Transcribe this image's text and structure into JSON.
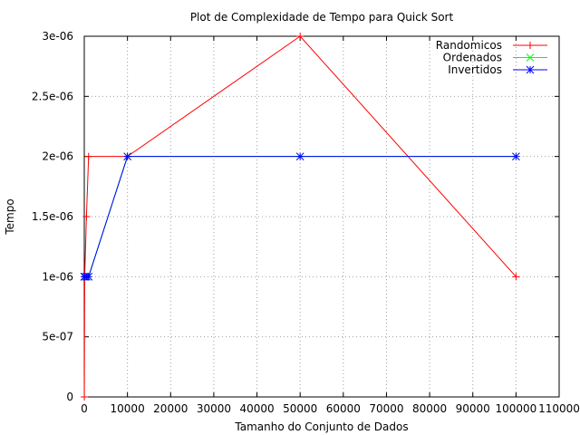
{
  "chart_data": {
    "type": "line",
    "title": "Plot de Complexidade de Tempo para Quick Sort",
    "xlabel": "Tamanho do Conjunto de Dados",
    "ylabel": "Tempo",
    "xlim": [
      0,
      110000
    ],
    "ylim": [
      0,
      3e-06
    ],
    "xticks": [
      0,
      10000,
      20000,
      30000,
      40000,
      50000,
      60000,
      70000,
      80000,
      90000,
      100000,
      110000
    ],
    "xtick_labels": [
      "0",
      "10000",
      "20000",
      "30000",
      "40000",
      "50000",
      "60000",
      "70000",
      "80000",
      "90000",
      "100000",
      "110000"
    ],
    "yticks": [
      0,
      5e-07,
      1e-06,
      1.5e-06,
      2e-06,
      2.5e-06,
      3e-06
    ],
    "ytick_labels": [
      "0",
      "5e-07",
      "1e-06",
      "1.5e-06",
      "2e-06",
      "2.5e-06",
      "3e-06"
    ],
    "grid": true,
    "legend_position": "top-right",
    "series": [
      {
        "name": "Randomicos",
        "color": "#ff0000",
        "marker": "plus",
        "x": [
          10,
          100,
          500,
          1000,
          10000,
          50000,
          100000
        ],
        "y": [
          0,
          1e-06,
          1.5e-06,
          2e-06,
          2e-06,
          3e-06,
          1e-06
        ]
      },
      {
        "name": "Ordenados",
        "color": "#00ff00",
        "marker": "cross",
        "x": [
          10,
          100,
          500,
          1000,
          10000,
          50000,
          100000
        ],
        "y": [
          1e-06,
          1e-06,
          1e-06,
          1e-06,
          2e-06,
          2e-06,
          2e-06
        ]
      },
      {
        "name": "Invertidos",
        "color": "#0000ff",
        "marker": "star",
        "x": [
          10,
          100,
          500,
          1000,
          10000,
          50000,
          100000
        ],
        "y": [
          1e-06,
          1e-06,
          1e-06,
          1e-06,
          2e-06,
          2e-06,
          2e-06
        ]
      }
    ]
  }
}
